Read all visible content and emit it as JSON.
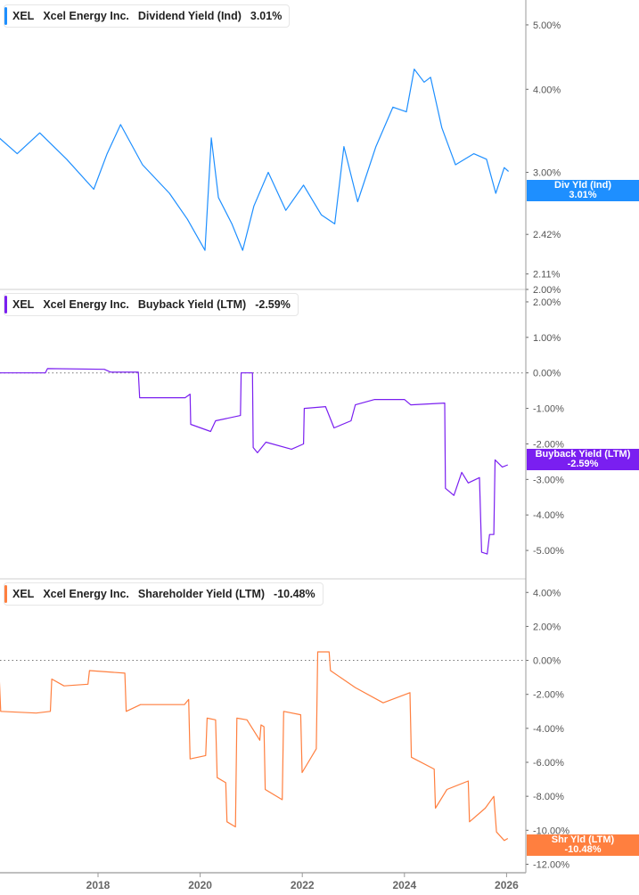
{
  "colors": {
    "dividend": "#1e8fff",
    "buyback": "#7a1ff0",
    "shareholder": "#ff7f3f"
  },
  "x_axis": {
    "ticks": [
      "2018",
      "2020",
      "2022",
      "2024",
      "2026"
    ]
  },
  "panels": [
    {
      "legend": {
        "ticker": "XEL",
        "company": "Xcel Energy Inc.",
        "metric": "Dividend Yield (Ind)",
        "value": "3.01%"
      },
      "tag": {
        "label": "Div Yld (Ind)",
        "value": "3.01%"
      }
    },
    {
      "legend": {
        "ticker": "XEL",
        "company": "Xcel Energy Inc.",
        "metric": "Buyback Yield (LTM)",
        "value": "-2.59%"
      },
      "tag": {
        "label": "Buyback Yield (LTM)",
        "value": "-2.59%"
      }
    },
    {
      "legend": {
        "ticker": "XEL",
        "company": "Xcel Energy Inc.",
        "metric": "Shareholder Yield (LTM)",
        "value": "-10.48%"
      },
      "tag": {
        "label": "Shr Yld (LTM)",
        "value": "-10.48%"
      }
    }
  ],
  "chart_data": [
    {
      "type": "line",
      "series_name": "Dividend Yield (Ind)",
      "y_scale": "log",
      "ylim": [
        2.0,
        5.45
      ],
      "y_ticks": [
        "5.00%",
        "4.00%",
        "3.00%",
        "2.42%",
        "2.11%",
        "2.00%"
      ],
      "x": [
        "2016-01-25",
        "2016-06-01",
        "2016-11-10",
        "2017-05-20",
        "2017-12-01",
        "2018-03-05",
        "2018-06-10",
        "2018-11-15",
        "2019-05-25",
        "2019-10-01",
        "2020-02-05",
        "2020-03-20",
        "2020-05-10",
        "2020-08-15",
        "2020-11-01",
        "2021-01-20",
        "2021-05-01",
        "2021-09-05",
        "2022-01-10",
        "2022-05-15",
        "2022-08-20",
        "2022-10-25",
        "2023-02-01",
        "2023-06-10",
        "2023-10-10",
        "2024-01-15",
        "2024-03-10",
        "2024-05-20",
        "2024-07-05",
        "2024-09-25",
        "2025-01-01",
        "2025-05-10",
        "2025-08-10",
        "2025-10-15",
        "2025-12-15",
        "2026-01-15"
      ],
      "values": [
        3.38,
        3.2,
        3.44,
        3.14,
        2.83,
        3.2,
        3.54,
        3.08,
        2.79,
        2.55,
        2.29,
        3.38,
        2.75,
        2.51,
        2.29,
        2.67,
        3.0,
        2.63,
        2.87,
        2.59,
        2.51,
        3.28,
        2.71,
        3.28,
        3.76,
        3.7,
        4.29,
        4.1,
        4.17,
        3.5,
        3.08,
        3.2,
        3.14,
        2.79,
        3.05,
        3.01
      ]
    },
    {
      "type": "line",
      "series_name": "Buyback Yield (LTM)",
      "ylim": [
        -5.8,
        2.35
      ],
      "y_ticks": [
        "2.00%",
        "1.00%",
        "0.00%",
        "-1.00%",
        "-2.00%",
        "-3.00%",
        "-4.00%",
        "-5.00%"
      ],
      "reference_line": 0,
      "x": [
        "2016-01-25",
        "2016-12-20",
        "2017-01-05",
        "2018-02-15",
        "2018-04-01",
        "2018-10-15",
        "2018-10-25",
        "2019-09-15",
        "2019-10-20",
        "2019-10-25",
        "2020-03-15",
        "2020-04-20",
        "2020-10-15",
        "2020-10-20",
        "2021-01-10",
        "2021-01-15",
        "2021-02-15",
        "2021-04-15",
        "2021-10-15",
        "2022-01-10",
        "2022-01-15",
        "2022-06-15",
        "2022-08-15",
        "2022-12-15",
        "2023-01-15",
        "2023-06-01",
        "2024-01-01",
        "2024-02-15",
        "2024-10-15",
        "2024-10-20",
        "2024-12-20",
        "2025-02-15",
        "2025-04-01",
        "2025-06-20",
        "2025-07-05",
        "2025-08-15",
        "2025-09-01",
        "2025-10-01",
        "2025-10-10",
        "2025-12-01",
        "2026-01-10"
      ],
      "values": [
        0.0,
        0.0,
        0.12,
        0.1,
        0.02,
        0.02,
        -0.7,
        -0.7,
        -0.6,
        -1.45,
        -1.65,
        -1.35,
        -1.2,
        0.0,
        0.0,
        -2.1,
        -2.25,
        -1.95,
        -2.15,
        -2.0,
        -1.0,
        -0.95,
        -1.55,
        -1.35,
        -0.9,
        -0.75,
        -0.75,
        -0.9,
        -0.85,
        -3.25,
        -3.45,
        -2.8,
        -3.1,
        -2.95,
        -5.05,
        -5.1,
        -4.55,
        -4.55,
        -2.45,
        -2.65,
        -2.59
      ]
    },
    {
      "type": "line",
      "series_name": "Shareholder Yield (LTM)",
      "ylim": [
        -12.5,
        4.8
      ],
      "y_ticks": [
        "4.00%",
        "2.00%",
        "0.00%",
        "-2.00%",
        "-4.00%",
        "-6.00%",
        "-8.00%",
        "-10.00%",
        "-12.00%"
      ],
      "reference_line": 0,
      "x": [
        "2016-01-25",
        "2016-02-05",
        "2016-10-15",
        "2017-01-25",
        "2017-02-05",
        "2017-05-01",
        "2017-10-20",
        "2017-11-01",
        "2018-07-10",
        "2018-07-20",
        "2018-11-01",
        "2019-09-10",
        "2019-10-10",
        "2019-10-20",
        "2020-02-10",
        "2020-02-20",
        "2020-04-20",
        "2020-05-01",
        "2020-07-01",
        "2020-07-10",
        "2020-09-10",
        "2020-09-20",
        "2020-12-01",
        "2021-03-01",
        "2021-03-10",
        "2021-04-01",
        "2021-04-10",
        "2021-08-10",
        "2021-08-20",
        "2021-12-20",
        "2021-12-30",
        "2022-04-10",
        "2022-04-20",
        "2022-07-10",
        "2022-07-20",
        "2023-01-15",
        "2023-08-01",
        "2024-02-10",
        "2024-02-20",
        "2024-08-01",
        "2024-08-10",
        "2024-11-01",
        "2025-04-01",
        "2025-04-10",
        "2025-08-01",
        "2025-10-01",
        "2025-10-20",
        "2025-12-15",
        "2026-01-10"
      ],
      "values": [
        -1.0,
        -3.0,
        -3.1,
        -3.0,
        -1.1,
        -1.5,
        -1.4,
        -0.6,
        -0.75,
        -3.0,
        -2.6,
        -2.6,
        -2.3,
        -5.8,
        -5.6,
        -3.4,
        -3.5,
        -6.9,
        -7.2,
        -9.5,
        -9.8,
        -3.4,
        -3.5,
        -4.7,
        -3.8,
        -3.9,
        -7.6,
        -8.2,
        -3.0,
        -3.2,
        -6.6,
        -5.2,
        0.5,
        0.5,
        -0.6,
        -1.6,
        -2.5,
        -1.9,
        -5.7,
        -6.4,
        -8.7,
        -7.6,
        -7.1,
        -9.5,
        -8.7,
        -8.0,
        -10.1,
        -10.6,
        -10.48
      ]
    }
  ]
}
